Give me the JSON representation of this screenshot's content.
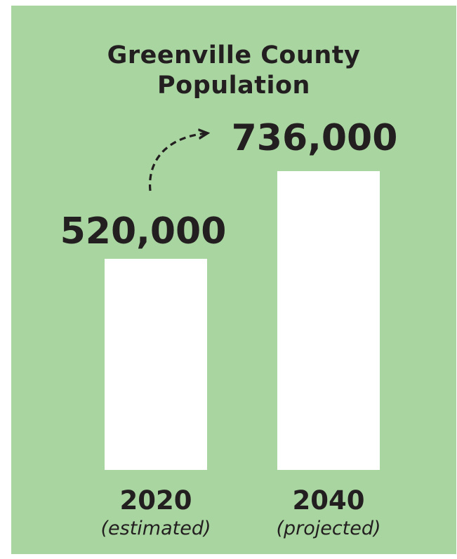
{
  "title_lines": [
    "Greenville County",
    "Population"
  ],
  "colors": {
    "background": "#a9d5a0",
    "bar": "#ffffff",
    "text": "#231f20"
  },
  "chart_data": {
    "type": "bar",
    "title": "Greenville County Population",
    "categories": [
      "2020",
      "2040"
    ],
    "category_notes": [
      "(estimated)",
      "(projected)"
    ],
    "values": [
      520000,
      736000
    ],
    "value_labels": [
      "520,000",
      "736,000"
    ],
    "annotation": "arrow-from-2020-to-2040",
    "xlabel": "",
    "ylabel": "",
    "grid": false,
    "legend": "none"
  }
}
